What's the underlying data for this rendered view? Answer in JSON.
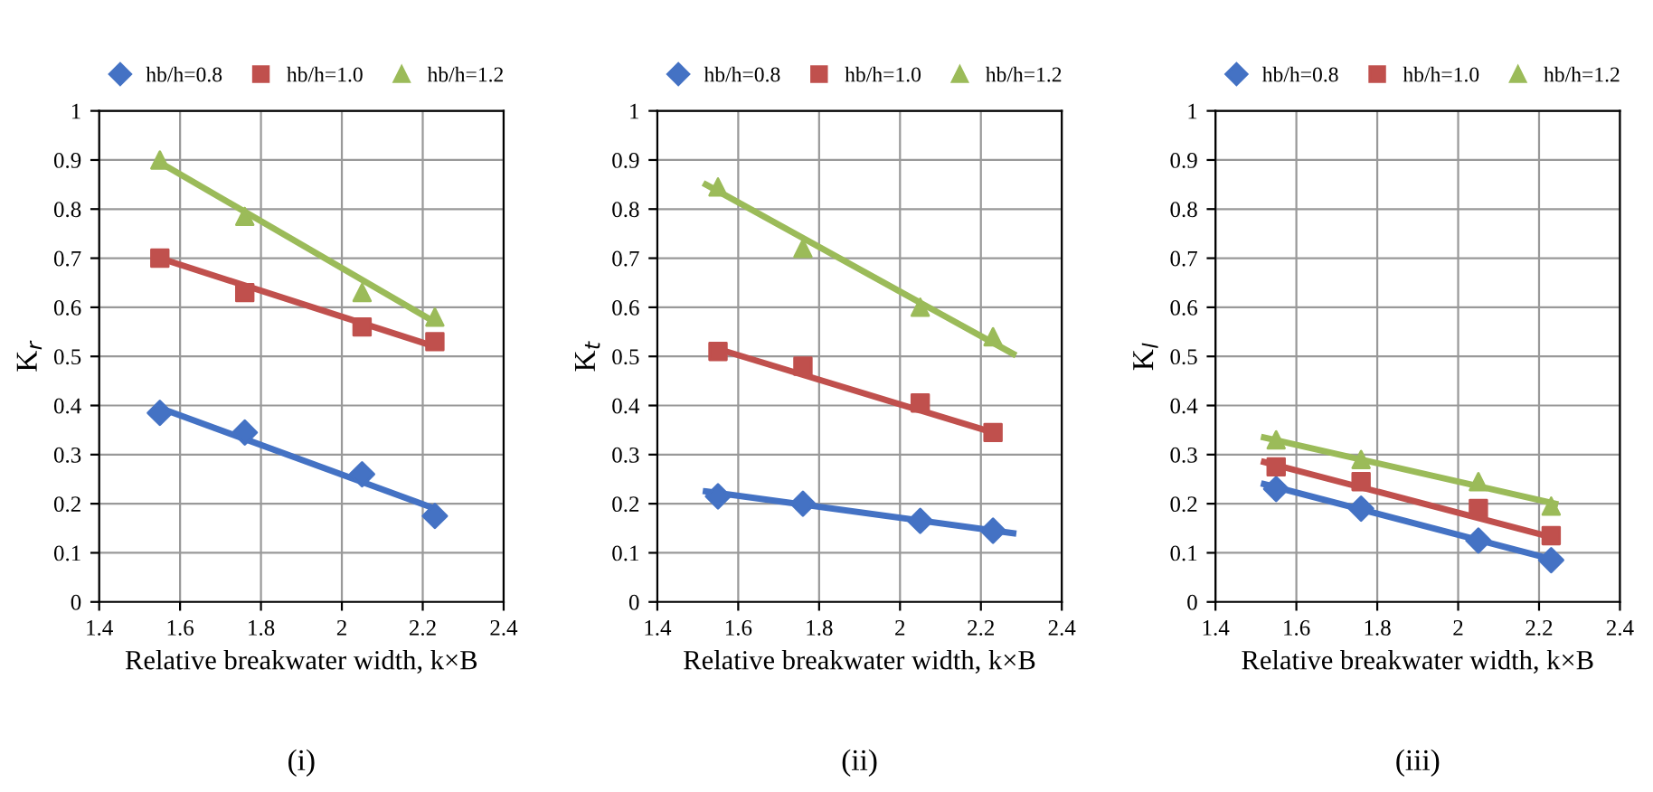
{
  "chart_data": [
    {
      "type": "scatter",
      "xlabel": "Relative breakwater width, k×B",
      "ylabel": "K$_{r}$",
      "annotations": [
        "(i)"
      ],
      "xlim": [
        1.4,
        2.4
      ],
      "xticks": [
        1.4,
        1.6,
        1.8,
        2,
        2.2,
        2.4
      ],
      "ylim": [
        0,
        1
      ],
      "yticks": [
        0,
        0.1,
        0.2,
        0.3,
        0.4,
        0.5,
        0.6,
        0.7,
        0.8,
        0.9,
        1
      ],
      "grid": true,
      "legend": "top",
      "series": [
        {
          "name": "hb/h=0.8",
          "color": "#4472c4",
          "marker": "diamond",
          "x": [
            1.55,
            1.76,
            2.05,
            2.23
          ],
          "values": [
            0.385,
            0.345,
            0.26,
            0.175
          ]
        },
        {
          "name": "hb/h=1.0",
          "color": "#c0504d",
          "marker": "square",
          "x": [
            1.55,
            1.76,
            2.05,
            2.23
          ],
          "values": [
            0.7,
            0.63,
            0.56,
            0.53
          ]
        },
        {
          "name": "hb/h=1.2",
          "color": "#9bbb59",
          "marker": "triangle",
          "x": [
            1.55,
            1.76,
            2.05,
            2.23
          ],
          "values": [
            0.9,
            0.785,
            0.63,
            0.58
          ]
        },
        {
          "type": "line",
          "color": "#4472c4",
          "x": [
            1.55,
            2.23
          ],
          "values": [
            0.395,
            0.19
          ]
        },
        {
          "type": "line",
          "color": "#c0504d",
          "x": [
            1.55,
            2.23
          ],
          "values": [
            0.7,
            0.52
          ]
        },
        {
          "type": "line",
          "color": "#9bbb59",
          "x": [
            1.55,
            2.23
          ],
          "values": [
            0.895,
            0.57
          ]
        }
      ]
    },
    {
      "type": "scatter",
      "xlabel": "Relative breakwater width, k×B",
      "ylabel": "K$_{t}$",
      "annotations": [
        "(ii)"
      ],
      "xlim": [
        1.4,
        2.4
      ],
      "xticks": [
        1.4,
        1.6,
        1.8,
        2,
        2.2,
        2.4
      ],
      "ylim": [
        0,
        1
      ],
      "yticks": [
        0,
        0.1,
        0.2,
        0.3,
        0.4,
        0.5,
        0.6,
        0.7,
        0.8,
        0.9,
        1
      ],
      "grid": true,
      "legend": "top",
      "series": [
        {
          "name": "hb/h=0.8",
          "color": "#4472c4",
          "marker": "diamond",
          "x": [
            1.55,
            1.76,
            2.05,
            2.23
          ],
          "values": [
            0.215,
            0.2,
            0.165,
            0.145
          ]
        },
        {
          "name": "hb/h=1.0",
          "color": "#c0504d",
          "marker": "square",
          "x": [
            1.55,
            1.76,
            2.05,
            2.23
          ],
          "values": [
            0.51,
            0.48,
            0.405,
            0.345
          ]
        },
        {
          "name": "hb/h=1.2",
          "color": "#9bbb59",
          "marker": "triangle",
          "x": [
            1.55,
            1.76,
            2.05,
            2.23
          ],
          "values": [
            0.845,
            0.72,
            0.6,
            0.54
          ]
        },
        {
          "type": "line",
          "color": "#4472c4",
          "x": [
            1.52,
            2.28
          ],
          "values": [
            0.225,
            0.14
          ]
        },
        {
          "type": "line",
          "color": "#c0504d",
          "x": [
            1.55,
            2.23
          ],
          "values": [
            0.515,
            0.345
          ]
        },
        {
          "type": "line",
          "color": "#9bbb59",
          "x": [
            1.52,
            2.28
          ],
          "values": [
            0.85,
            0.505
          ]
        }
      ]
    },
    {
      "type": "scatter",
      "xlabel": "Relative breakwater width, k×B",
      "ylabel": "K$_{l}$",
      "annotations": [
        "(iii)"
      ],
      "xlim": [
        1.4,
        2.4
      ],
      "xticks": [
        1.4,
        1.6,
        1.8,
        2,
        2.2,
        2.4
      ],
      "ylim": [
        0,
        1
      ],
      "yticks": [
        0,
        0.1,
        0.2,
        0.3,
        0.4,
        0.5,
        0.6,
        0.7,
        0.8,
        0.9,
        1
      ],
      "grid": true,
      "legend": "top",
      "series": [
        {
          "name": "hb/h=0.8",
          "color": "#4472c4",
          "marker": "diamond",
          "x": [
            1.55,
            1.76,
            2.05,
            2.23
          ],
          "values": [
            0.23,
            0.19,
            0.125,
            0.085
          ]
        },
        {
          "name": "hb/h=1.0",
          "color": "#c0504d",
          "marker": "square",
          "x": [
            1.55,
            1.76,
            2.05,
            2.23
          ],
          "values": [
            0.275,
            0.245,
            0.19,
            0.135
          ]
        },
        {
          "name": "hb/h=1.2",
          "color": "#9bbb59",
          "marker": "triangle",
          "x": [
            1.55,
            1.76,
            2.05,
            2.23
          ],
          "values": [
            0.33,
            0.29,
            0.245,
            0.195
          ]
        },
        {
          "type": "line",
          "color": "#4472c4",
          "x": [
            1.52,
            2.24
          ],
          "values": [
            0.24,
            0.085
          ]
        },
        {
          "type": "line",
          "color": "#c0504d",
          "x": [
            1.52,
            2.24
          ],
          "values": [
            0.285,
            0.13
          ]
        },
        {
          "type": "line",
          "color": "#9bbb59",
          "x": [
            1.52,
            2.24
          ],
          "values": [
            0.335,
            0.2
          ]
        }
      ]
    }
  ]
}
